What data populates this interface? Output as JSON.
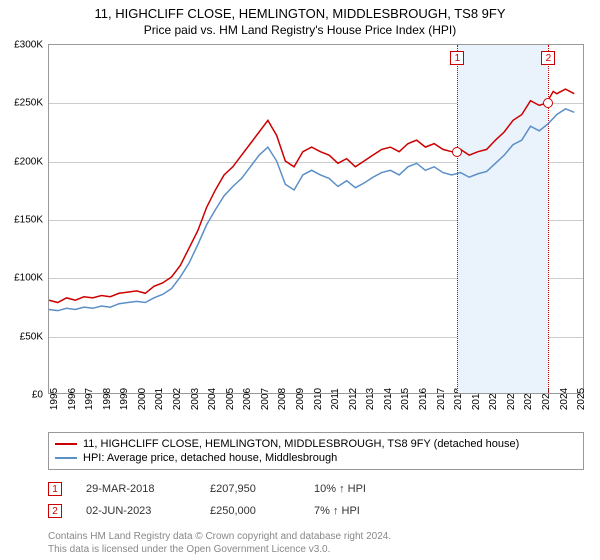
{
  "title": "11, HIGHCLIFF CLOSE, HEMLINGTON, MIDDLESBROUGH, TS8 9FY",
  "subtitle": "Price paid vs. HM Land Registry's House Price Index (HPI)",
  "chart": {
    "type": "line",
    "background_color": "#ffffff",
    "grid_color": "#cccccc",
    "border_color": "#999999",
    "xlim": [
      1995,
      2025.5
    ],
    "ylim": [
      0,
      300000
    ],
    "ytick_step": 50000,
    "ytick_prefix": "£",
    "ytick_suffix": "K",
    "yticks": [
      {
        "v": 0,
        "label": "£0"
      },
      {
        "v": 50000,
        "label": "£50K"
      },
      {
        "v": 100000,
        "label": "£100K"
      },
      {
        "v": 150000,
        "label": "£150K"
      },
      {
        "v": 200000,
        "label": "£200K"
      },
      {
        "v": 250000,
        "label": "£250K"
      },
      {
        "v": 300000,
        "label": "£300K"
      }
    ],
    "xticks": [
      1995,
      1996,
      1997,
      1998,
      1999,
      2000,
      2001,
      2002,
      2003,
      2004,
      2005,
      2006,
      2007,
      2008,
      2009,
      2010,
      2011,
      2012,
      2013,
      2014,
      2015,
      2016,
      2017,
      2018,
      2019,
      2020,
      2021,
      2022,
      2023,
      2024,
      2025
    ],
    "highlight_band": {
      "from": 2018.24,
      "to": 2023.42,
      "color": "#eaf2fb"
    },
    "vlines": [
      {
        "x": 2018.24,
        "label": "1"
      },
      {
        "x": 2023.42,
        "label": "2"
      }
    ],
    "series": [
      {
        "name": "11, HIGHCLIFF CLOSE, HEMLINGTON, MIDDLESBROUGH, TS8 9FY (detached house)",
        "color": "#cc0000",
        "line_width": 1.5,
        "points": [
          [
            1995,
            80000
          ],
          [
            1995.5,
            78000
          ],
          [
            1996,
            82000
          ],
          [
            1996.5,
            80000
          ],
          [
            1997,
            83000
          ],
          [
            1997.5,
            82000
          ],
          [
            1998,
            84000
          ],
          [
            1998.5,
            83000
          ],
          [
            1999,
            86000
          ],
          [
            1999.5,
            87000
          ],
          [
            2000,
            88000
          ],
          [
            2000.5,
            86000
          ],
          [
            2001,
            92000
          ],
          [
            2001.5,
            95000
          ],
          [
            2002,
            100000
          ],
          [
            2002.5,
            110000
          ],
          [
            2003,
            125000
          ],
          [
            2003.5,
            140000
          ],
          [
            2004,
            160000
          ],
          [
            2004.5,
            175000
          ],
          [
            2005,
            188000
          ],
          [
            2005.5,
            195000
          ],
          [
            2006,
            205000
          ],
          [
            2006.5,
            215000
          ],
          [
            2007,
            225000
          ],
          [
            2007.5,
            235000
          ],
          [
            2008,
            222000
          ],
          [
            2008.5,
            200000
          ],
          [
            2009,
            195000
          ],
          [
            2009.5,
            208000
          ],
          [
            2010,
            212000
          ],
          [
            2010.5,
            208000
          ],
          [
            2011,
            205000
          ],
          [
            2011.5,
            198000
          ],
          [
            2012,
            202000
          ],
          [
            2012.5,
            195000
          ],
          [
            2013,
            200000
          ],
          [
            2013.5,
            205000
          ],
          [
            2014,
            210000
          ],
          [
            2014.5,
            212000
          ],
          [
            2015,
            208000
          ],
          [
            2015.5,
            215000
          ],
          [
            2016,
            218000
          ],
          [
            2016.5,
            212000
          ],
          [
            2017,
            215000
          ],
          [
            2017.5,
            210000
          ],
          [
            2018,
            208000
          ],
          [
            2018.24,
            207950
          ],
          [
            2018.5,
            210000
          ],
          [
            2019,
            205000
          ],
          [
            2019.5,
            208000
          ],
          [
            2020,
            210000
          ],
          [
            2020.5,
            218000
          ],
          [
            2021,
            225000
          ],
          [
            2021.5,
            235000
          ],
          [
            2022,
            240000
          ],
          [
            2022.5,
            252000
          ],
          [
            2023,
            248000
          ],
          [
            2023.42,
            250000
          ],
          [
            2023.8,
            260000
          ],
          [
            2024,
            258000
          ],
          [
            2024.5,
            262000
          ],
          [
            2025,
            258000
          ]
        ]
      },
      {
        "name": "HPI: Average price, detached house, Middlesbrough",
        "color": "#5b8fc8",
        "line_width": 1.5,
        "points": [
          [
            1995,
            72000
          ],
          [
            1995.5,
            71000
          ],
          [
            1996,
            73000
          ],
          [
            1996.5,
            72000
          ],
          [
            1997,
            74000
          ],
          [
            1997.5,
            73000
          ],
          [
            1998,
            75000
          ],
          [
            1998.5,
            74000
          ],
          [
            1999,
            77000
          ],
          [
            1999.5,
            78000
          ],
          [
            2000,
            79000
          ],
          [
            2000.5,
            78000
          ],
          [
            2001,
            82000
          ],
          [
            2001.5,
            85000
          ],
          [
            2002,
            90000
          ],
          [
            2002.5,
            100000
          ],
          [
            2003,
            112000
          ],
          [
            2003.5,
            128000
          ],
          [
            2004,
            145000
          ],
          [
            2004.5,
            158000
          ],
          [
            2005,
            170000
          ],
          [
            2005.5,
            178000
          ],
          [
            2006,
            185000
          ],
          [
            2006.5,
            195000
          ],
          [
            2007,
            205000
          ],
          [
            2007.5,
            212000
          ],
          [
            2008,
            200000
          ],
          [
            2008.5,
            180000
          ],
          [
            2009,
            175000
          ],
          [
            2009.5,
            188000
          ],
          [
            2010,
            192000
          ],
          [
            2010.5,
            188000
          ],
          [
            2011,
            185000
          ],
          [
            2011.5,
            178000
          ],
          [
            2012,
            183000
          ],
          [
            2012.5,
            177000
          ],
          [
            2013,
            181000
          ],
          [
            2013.5,
            186000
          ],
          [
            2014,
            190000
          ],
          [
            2014.5,
            192000
          ],
          [
            2015,
            188000
          ],
          [
            2015.5,
            195000
          ],
          [
            2016,
            198000
          ],
          [
            2016.5,
            192000
          ],
          [
            2017,
            195000
          ],
          [
            2017.5,
            190000
          ],
          [
            2018,
            188000
          ],
          [
            2018.5,
            190000
          ],
          [
            2019,
            186000
          ],
          [
            2019.5,
            189000
          ],
          [
            2020,
            191000
          ],
          [
            2020.5,
            198000
          ],
          [
            2021,
            205000
          ],
          [
            2021.5,
            214000
          ],
          [
            2022,
            218000
          ],
          [
            2022.5,
            230000
          ],
          [
            2023,
            226000
          ],
          [
            2023.5,
            232000
          ],
          [
            2024,
            240000
          ],
          [
            2024.5,
            245000
          ],
          [
            2025,
            242000
          ]
        ]
      }
    ],
    "sale_markers": [
      {
        "x": 2018.24,
        "y": 207950
      },
      {
        "x": 2023.42,
        "y": 250000
      }
    ]
  },
  "legend": {
    "items": [
      {
        "color": "#cc0000",
        "label": "11, HIGHCLIFF CLOSE, HEMLINGTON, MIDDLESBROUGH, TS8 9FY (detached house)"
      },
      {
        "color": "#5b8fc8",
        "label": "HPI: Average price, detached house, Middlesbrough"
      }
    ]
  },
  "events": [
    {
      "num": "1",
      "date": "29-MAR-2018",
      "price": "£207,950",
      "pct": "10% ↑ HPI"
    },
    {
      "num": "2",
      "date": "02-JUN-2023",
      "price": "£250,000",
      "pct": "7% ↑ HPI"
    }
  ],
  "footer_line1": "Contains HM Land Registry data © Crown copyright and database right 2024.",
  "footer_line2": "This data is licensed under the Open Government Licence v3.0."
}
